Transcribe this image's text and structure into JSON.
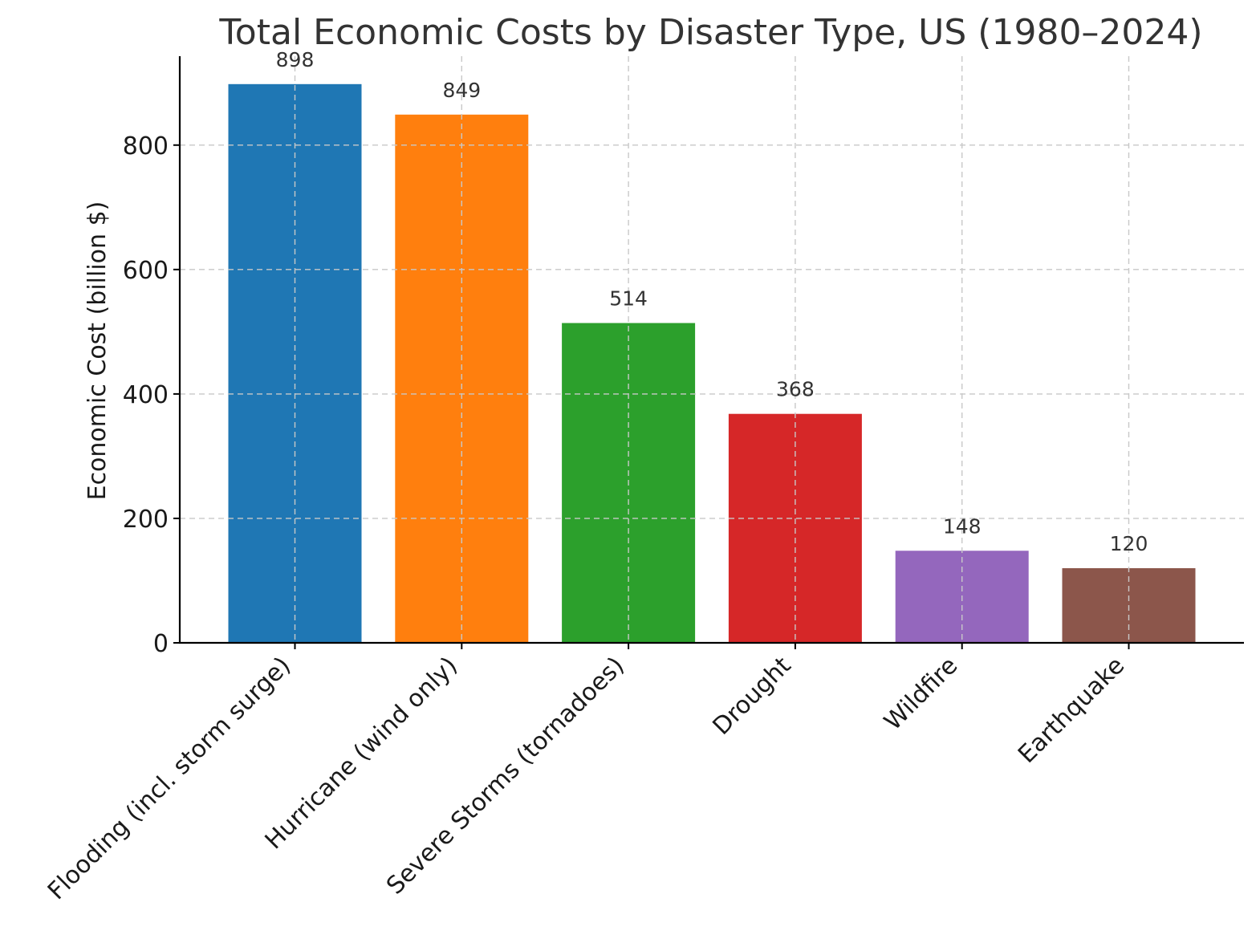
{
  "chart_data": {
    "type": "bar",
    "title": "Total Economic Costs by Disaster Type, US (1980–2024)",
    "xlabel": "",
    "ylabel": "Economic Cost (billion $)",
    "categories": [
      "Flooding (incl. storm surge)",
      "Hurricane (wind only)",
      "Severe Storms (tornadoes)",
      "Drought",
      "Wildfire",
      "Earthquake"
    ],
    "values": [
      898,
      849,
      514,
      368,
      148,
      120
    ],
    "value_labels": [
      "898",
      "849",
      "514",
      "368",
      "148",
      "120"
    ],
    "colors": [
      "#1f77b4",
      "#ff7f0e",
      "#2ca02c",
      "#d62728",
      "#9467bd",
      "#8c564b"
    ],
    "ylim": [
      0,
      942.9
    ],
    "yticks": [
      0,
      200,
      400,
      600,
      800
    ],
    "ytick_labels": [
      "0",
      "200",
      "400",
      "600",
      "800"
    ],
    "grid": true,
    "legend": "none"
  }
}
